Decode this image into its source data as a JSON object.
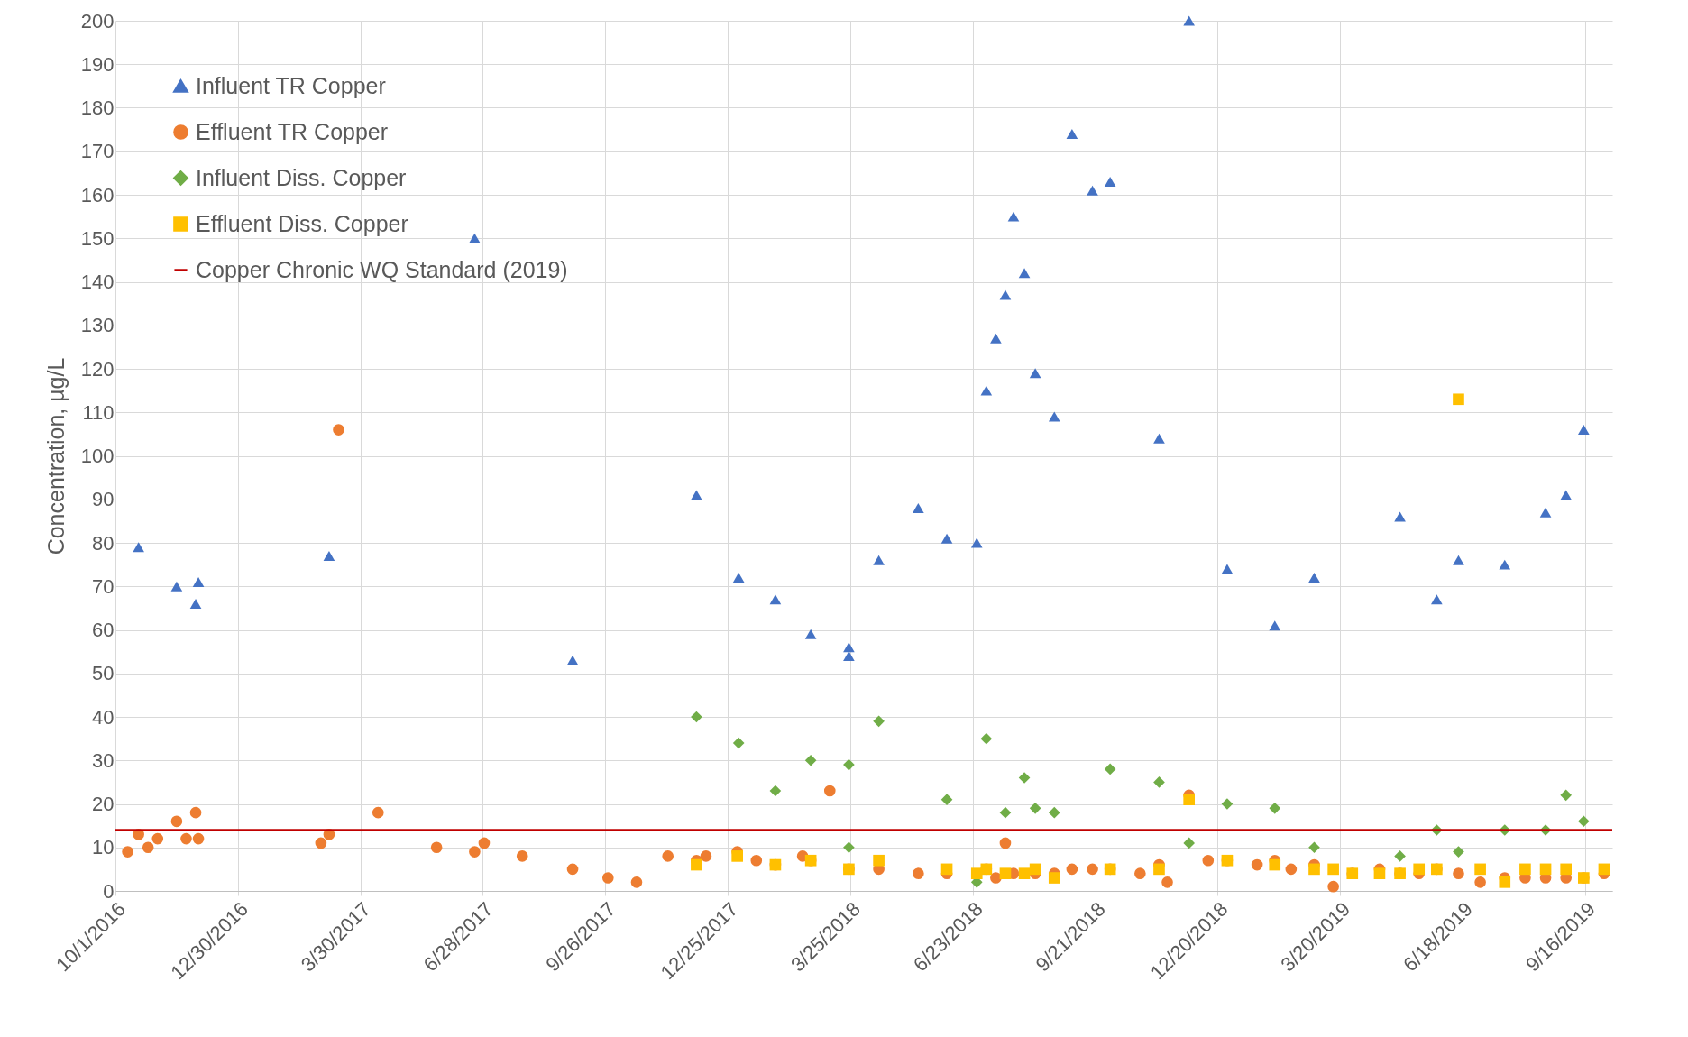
{
  "chart_data": {
    "type": "scatter",
    "ylabel": "Concentration, µg/L",
    "xlim": [
      "2016-10-01",
      "2019-10-06"
    ],
    "xticks": [
      {
        "value": "2016-10-01",
        "label": "10/1/2016"
      },
      {
        "value": "2016-12-30",
        "label": "12/30/2016"
      },
      {
        "value": "2017-03-30",
        "label": "3/30/2017"
      },
      {
        "value": "2017-06-28",
        "label": "6/28/2017"
      },
      {
        "value": "2017-09-26",
        "label": "9/26/2017"
      },
      {
        "value": "2017-12-25",
        "label": "12/25/2017"
      },
      {
        "value": "2018-03-25",
        "label": "3/25/2018"
      },
      {
        "value": "2018-06-23",
        "label": "6/23/2018"
      },
      {
        "value": "2018-09-21",
        "label": "9/21/2018"
      },
      {
        "value": "2018-12-20",
        "label": "12/20/2018"
      },
      {
        "value": "2019-03-20",
        "label": "3/20/2019"
      },
      {
        "value": "2019-06-18",
        "label": "6/18/2019"
      },
      {
        "value": "2019-09-16",
        "label": "9/16/2019"
      }
    ],
    "ylim": [
      0,
      200
    ],
    "yticks": [
      0,
      10,
      20,
      30,
      40,
      50,
      60,
      70,
      80,
      90,
      100,
      110,
      120,
      130,
      140,
      150,
      160,
      170,
      180,
      190,
      200
    ],
    "grid": true,
    "legend": "top left",
    "series": [
      {
        "name": "Influent TR Copper",
        "color": "#4472c4",
        "marker": "triangle",
        "x": [
          "2016-10-18",
          "2016-11-15",
          "2016-11-29",
          "2016-12-01",
          "2017-03-07",
          "2017-06-22",
          "2017-09-02",
          "2017-12-02",
          "2018-01-02",
          "2018-01-29",
          "2018-02-24",
          "2018-03-24",
          "2018-03-24",
          "2018-04-15",
          "2018-05-14",
          "2018-06-04",
          "2018-06-26",
          "2018-07-03",
          "2018-07-10",
          "2018-07-17",
          "2018-07-23",
          "2018-07-31",
          "2018-08-08",
          "2018-08-22",
          "2018-09-04",
          "2018-09-19",
          "2018-10-02",
          "2018-11-07",
          "2018-11-29",
          "2018-12-27",
          "2019-01-31",
          "2019-03-01",
          "2019-05-03",
          "2019-05-30",
          "2019-06-15",
          "2019-07-19",
          "2019-08-18",
          "2019-09-02",
          "2019-09-15"
        ],
        "values": [
          79,
          70,
          66,
          71,
          77,
          150,
          53,
          91,
          72,
          67,
          59,
          54,
          56,
          76,
          88,
          81,
          80,
          115,
          127,
          137,
          155,
          142,
          119,
          109,
          174,
          161,
          163,
          104,
          200,
          74,
          61,
          72,
          86,
          67,
          76,
          75,
          87,
          91,
          106
        ]
      },
      {
        "name": "Effluent TR Copper",
        "color": "#ed7d31",
        "marker": "circle",
        "x": [
          "2016-10-10",
          "2016-10-18",
          "2016-10-25",
          "2016-11-01",
          "2016-11-15",
          "2016-11-22",
          "2016-11-29",
          "2016-12-01",
          "2017-03-01",
          "2017-03-07",
          "2017-03-14",
          "2017-04-12",
          "2017-05-25",
          "2017-06-22",
          "2017-06-29",
          "2017-07-27",
          "2017-09-02",
          "2017-09-28",
          "2017-10-19",
          "2017-11-11",
          "2017-12-02",
          "2017-12-09",
          "2018-01-01",
          "2018-01-15",
          "2018-01-29",
          "2018-02-18",
          "2018-02-24",
          "2018-03-10",
          "2018-03-24",
          "2018-04-15",
          "2018-05-14",
          "2018-06-04",
          "2018-07-03",
          "2018-07-10",
          "2018-07-17",
          "2018-07-23",
          "2018-08-08",
          "2018-08-22",
          "2018-09-04",
          "2018-09-19",
          "2018-10-02",
          "2018-10-24",
          "2018-11-07",
          "2018-11-13",
          "2018-11-29",
          "2018-12-13",
          "2018-12-27",
          "2019-01-18",
          "2019-01-31",
          "2019-02-12",
          "2019-03-01",
          "2019-03-15",
          "2019-03-29",
          "2019-04-18",
          "2019-05-03",
          "2019-05-17",
          "2019-05-30",
          "2019-06-15",
          "2019-07-01",
          "2019-07-19",
          "2019-08-03",
          "2019-08-18",
          "2019-09-02",
          "2019-09-15",
          "2019-09-30"
        ],
        "values": [
          9,
          13,
          10,
          12,
          16,
          12,
          18,
          12,
          11,
          13,
          106,
          18,
          10,
          9,
          11,
          8,
          5,
          3,
          2,
          8,
          7,
          8,
          9,
          7,
          6,
          8,
          7,
          23,
          5,
          5,
          4,
          4,
          5,
          3,
          11,
          4,
          4,
          4,
          5,
          5,
          5,
          4,
          6,
          2,
          22,
          7,
          7,
          6,
          7,
          5,
          6,
          1,
          4,
          5,
          4,
          4,
          5,
          4,
          2,
          3,
          3,
          3,
          3,
          3,
          4
        ]
      },
      {
        "name": "Influent Diss. Copper",
        "color": "#70ad47",
        "marker": "diamond",
        "x": [
          "2017-12-02",
          "2018-01-02",
          "2018-01-29",
          "2018-02-24",
          "2018-03-24",
          "2018-03-24",
          "2018-04-15",
          "2018-06-04",
          "2018-06-26",
          "2018-07-03",
          "2018-07-17",
          "2018-07-31",
          "2018-08-08",
          "2018-08-22",
          "2018-10-02",
          "2018-11-07",
          "2018-11-29",
          "2018-12-27",
          "2019-01-31",
          "2019-03-01",
          "2019-05-03",
          "2019-05-30",
          "2019-06-15",
          "2019-07-19",
          "2019-08-18",
          "2019-09-02",
          "2019-09-15"
        ],
        "values": [
          40,
          34,
          23,
          30,
          29,
          10,
          39,
          21,
          2,
          35,
          18,
          26,
          19,
          18,
          28,
          25,
          11,
          20,
          19,
          10,
          8,
          14,
          9,
          14,
          14,
          22,
          16
        ]
      },
      {
        "name": "Effluent Diss. Copper",
        "color": "#ffc000",
        "marker": "square",
        "x": [
          "2017-12-02",
          "2018-01-01",
          "2018-01-29",
          "2018-02-24",
          "2018-03-24",
          "2018-04-15",
          "2018-06-04",
          "2018-06-26",
          "2018-07-03",
          "2018-07-17",
          "2018-07-31",
          "2018-08-08",
          "2018-08-22",
          "2018-10-02",
          "2018-11-07",
          "2018-11-29",
          "2018-12-27",
          "2019-01-31",
          "2019-03-01",
          "2019-03-15",
          "2019-03-29",
          "2019-04-18",
          "2019-05-03",
          "2019-05-17",
          "2019-05-30",
          "2019-06-15",
          "2019-07-01",
          "2019-07-19",
          "2019-08-03",
          "2019-08-18",
          "2019-09-02",
          "2019-09-15",
          "2019-09-30"
        ],
        "values": [
          6,
          8,
          6,
          7,
          5,
          7,
          5,
          4,
          5,
          4,
          4,
          5,
          3,
          5,
          5,
          21,
          7,
          6,
          5,
          5,
          4,
          4,
          4,
          5,
          5,
          113,
          5,
          2,
          5,
          5,
          5,
          3,
          5
        ]
      }
    ],
    "ref_lines": [
      {
        "axis": "y",
        "value": 14,
        "label": "Copper Chronic WQ Standard (2019)",
        "color": "#c00000"
      }
    ]
  }
}
